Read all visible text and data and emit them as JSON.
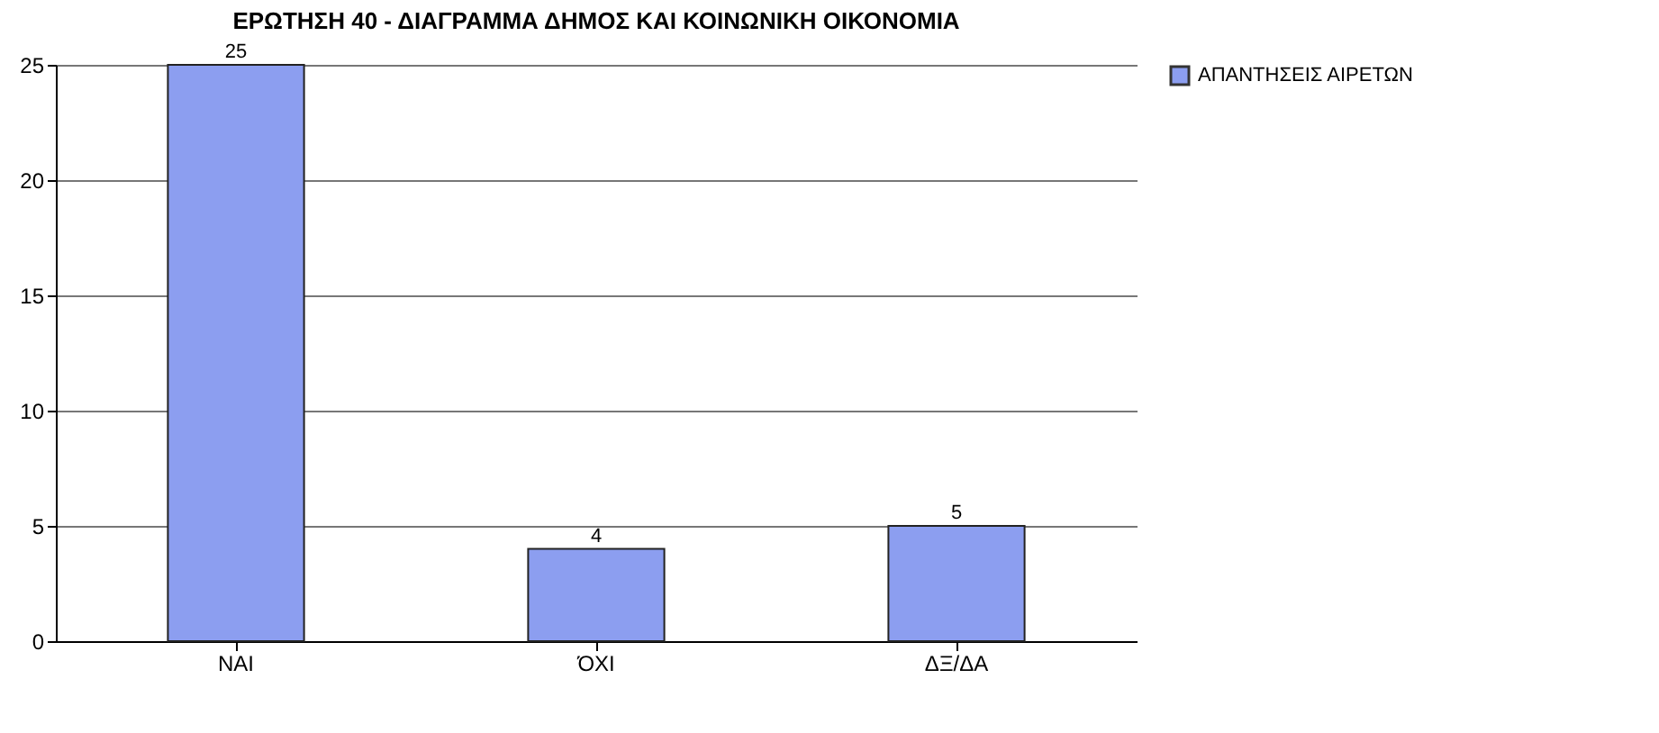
{
  "chart_data": {
    "type": "bar",
    "title": "ΕΡΩΤΗΣΗ 40 - ΔΙΑΓΡΑΜΜΑ ΔΗΜΟΣ ΚΑΙ ΚΟΙΝΩΝΙΚΗ ΟΙΚΟΝΟΜΙΑ",
    "categories": [
      "ΝΑΙ",
      "ΌΧΙ",
      "ΔΞ/ΔΑ"
    ],
    "series": [
      {
        "name": "ΑΠΑΝΤΗΣΕΙΣ ΑΙΡΕΤΩΝ",
        "color": "#8c9ef0",
        "values": [
          25,
          4,
          5
        ]
      }
    ],
    "ylim": [
      0,
      25
    ],
    "yticks": [
      0,
      5,
      10,
      15,
      20,
      25
    ],
    "grid": "y",
    "legend": "right",
    "data_labels": true
  }
}
